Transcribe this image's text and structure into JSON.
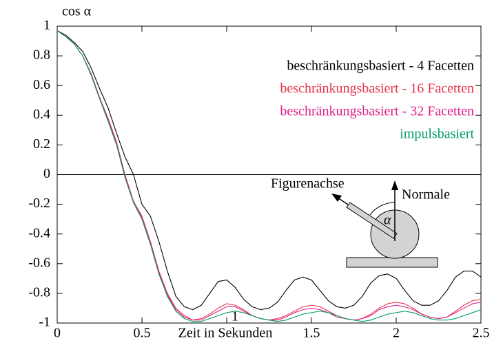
{
  "chart_data": {
    "type": "line",
    "ylabel": "cos α",
    "xlabel": "Zeit in Sekunden",
    "x": [
      0,
      0.05,
      0.1,
      0.15,
      0.2,
      0.25,
      0.3,
      0.35,
      0.4,
      0.45,
      0.5,
      0.55,
      0.6,
      0.65,
      0.7,
      0.75,
      0.8,
      0.85,
      0.9,
      0.95,
      1.0,
      1.05,
      1.1,
      1.15,
      1.2,
      1.25,
      1.3,
      1.35,
      1.4,
      1.45,
      1.5,
      1.55,
      1.6,
      1.65,
      1.7,
      1.75,
      1.8,
      1.85,
      1.9,
      1.95,
      2.0,
      2.05,
      2.1,
      2.15,
      2.2,
      2.25,
      2.3,
      2.35,
      2.4,
      2.45,
      2.5
    ],
    "series": [
      {
        "name": "beschränkungsbasiert - 4 Facetten",
        "color": "#000000",
        "values": [
          0.97,
          0.94,
          0.89,
          0.83,
          0.72,
          0.58,
          0.45,
          0.28,
          0.12,
          0.0,
          -0.2,
          -0.28,
          -0.45,
          -0.65,
          -0.82,
          -0.89,
          -0.91,
          -0.88,
          -0.8,
          -0.72,
          -0.71,
          -0.76,
          -0.84,
          -0.89,
          -0.91,
          -0.9,
          -0.86,
          -0.78,
          -0.71,
          -0.69,
          -0.71,
          -0.78,
          -0.85,
          -0.89,
          -0.9,
          -0.88,
          -0.82,
          -0.73,
          -0.68,
          -0.67,
          -0.7,
          -0.78,
          -0.85,
          -0.88,
          -0.88,
          -0.85,
          -0.78,
          -0.69,
          -0.65,
          -0.65,
          -0.69
        ]
      },
      {
        "name": "beschränkungsbasiert - 16 Facetten",
        "color": "#e8334a",
        "values": [
          0.97,
          0.93,
          0.88,
          0.8,
          0.68,
          0.52,
          0.38,
          0.22,
          0.0,
          -0.18,
          -0.28,
          -0.45,
          -0.65,
          -0.8,
          -0.9,
          -0.95,
          -0.98,
          -0.97,
          -0.94,
          -0.9,
          -0.87,
          -0.88,
          -0.91,
          -0.95,
          -0.97,
          -0.98,
          -0.97,
          -0.95,
          -0.92,
          -0.89,
          -0.88,
          -0.89,
          -0.92,
          -0.95,
          -0.97,
          -0.98,
          -0.97,
          -0.94,
          -0.9,
          -0.87,
          -0.86,
          -0.87,
          -0.9,
          -0.94,
          -0.96,
          -0.97,
          -0.96,
          -0.92,
          -0.88,
          -0.85,
          -0.84
        ]
      },
      {
        "name": "beschränkungsbasiert - 32 Facetten",
        "color": "#e0218a",
        "values": [
          0.97,
          0.93,
          0.88,
          0.8,
          0.68,
          0.52,
          0.37,
          0.21,
          -0.01,
          -0.18,
          -0.29,
          -0.46,
          -0.66,
          -0.81,
          -0.91,
          -0.96,
          -0.98,
          -0.98,
          -0.95,
          -0.92,
          -0.89,
          -0.89,
          -0.92,
          -0.95,
          -0.97,
          -0.98,
          -0.98,
          -0.96,
          -0.93,
          -0.91,
          -0.9,
          -0.91,
          -0.93,
          -0.96,
          -0.97,
          -0.98,
          -0.97,
          -0.95,
          -0.91,
          -0.89,
          -0.88,
          -0.89,
          -0.91,
          -0.94,
          -0.96,
          -0.97,
          -0.96,
          -0.93,
          -0.9,
          -0.87,
          -0.86
        ]
      },
      {
        "name": "impulsbasiert",
        "color": "#009e60",
        "values": [
          0.97,
          0.93,
          0.88,
          0.8,
          0.67,
          0.51,
          0.36,
          0.2,
          -0.02,
          -0.19,
          -0.3,
          -0.47,
          -0.67,
          -0.82,
          -0.92,
          -0.97,
          -0.99,
          -0.99,
          -0.97,
          -0.95,
          -0.93,
          -0.92,
          -0.93,
          -0.95,
          -0.97,
          -0.98,
          -0.99,
          -0.98,
          -0.96,
          -0.94,
          -0.93,
          -0.92,
          -0.93,
          -0.95,
          -0.97,
          -0.98,
          -0.99,
          -0.98,
          -0.96,
          -0.94,
          -0.93,
          -0.92,
          -0.93,
          -0.95,
          -0.97,
          -0.98,
          -0.98,
          -0.97,
          -0.95,
          -0.93,
          -0.91
        ]
      }
    ],
    "xlim": [
      0,
      2.5
    ],
    "ylim": [
      -1,
      1
    ],
    "xticks": [
      0,
      0.5,
      1,
      1.5,
      2,
      2.5
    ],
    "yticks": [
      -1,
      -0.8,
      -0.6,
      -0.4,
      -0.2,
      0,
      0.2,
      0.4,
      0.6,
      0.8,
      1
    ],
    "zero_line": true,
    "legend": "upper right",
    "annotations": [
      "Figurenachse",
      "Normale",
      "α"
    ]
  }
}
